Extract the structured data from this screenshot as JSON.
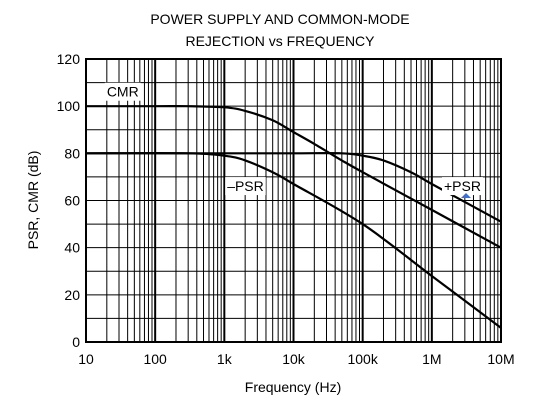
{
  "chart_data": {
    "type": "line",
    "title_line1": "POWER SUPPLY AND COMMON-MODE",
    "title_line2": "REJECTION vs FREQUENCY",
    "xlabel": "Frequency (Hz)",
    "ylabel": "PSR, CMR (dB)",
    "x_scale": "log",
    "xlim": [
      10,
      10000000
    ],
    "ylim": [
      0,
      120
    ],
    "grid": true,
    "x_ticks": [
      {
        "value": 10,
        "label": "10"
      },
      {
        "value": 100,
        "label": "100"
      },
      {
        "value": 1000,
        "label": "1k"
      },
      {
        "value": 10000,
        "label": "10k"
      },
      {
        "value": 100000,
        "label": "100k"
      },
      {
        "value": 1000000,
        "label": "1M"
      },
      {
        "value": 10000000,
        "label": "10M"
      }
    ],
    "y_ticks": [
      {
        "value": 0,
        "label": "0"
      },
      {
        "value": 20,
        "label": "20"
      },
      {
        "value": 40,
        "label": "40"
      },
      {
        "value": 60,
        "label": "60"
      },
      {
        "value": 80,
        "label": "80"
      },
      {
        "value": 100,
        "label": "100"
      },
      {
        "value": 120,
        "label": "120"
      }
    ],
    "series": [
      {
        "name": "CMR",
        "label_at": [
          20,
          104
        ],
        "x": [
          10,
          100,
          300,
          1000,
          2000,
          5000,
          10000,
          20000,
          50000,
          100000,
          1000000,
          10000000
        ],
        "y": [
          100,
          100,
          100,
          99.5,
          98,
          94,
          89,
          84,
          77,
          72,
          56,
          40
        ]
      },
      {
        "name": "+PSR",
        "label_at": [
          1500000,
          64
        ],
        "x": [
          10,
          1000,
          10000,
          50000,
          100000,
          200000,
          500000,
          1000000,
          10000000
        ],
        "y": [
          80,
          80,
          80,
          80,
          79,
          77,
          72,
          67,
          51
        ]
      },
      {
        "name": "–PSR",
        "label_at": [
          1100,
          64
        ],
        "x": [
          10,
          300,
          1000,
          2000,
          5000,
          10000,
          100000,
          1000000,
          10000000
        ],
        "y": [
          80,
          80,
          79,
          77,
          72,
          67,
          50,
          28,
          6
        ]
      }
    ]
  }
}
